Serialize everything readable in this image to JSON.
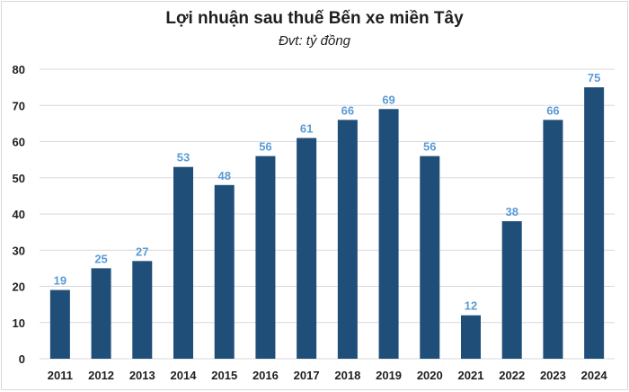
{
  "chart_data": {
    "type": "bar",
    "title": "Lợi nhuận sau thuế Bến xe miền Tây",
    "subtitle": "Đvt: tỷ đồng",
    "categories": [
      "2011",
      "2012",
      "2013",
      "2014",
      "2015",
      "2016",
      "2017",
      "2018",
      "2019",
      "2020",
      "2021",
      "2022",
      "2023",
      "2024"
    ],
    "series": [
      {
        "values": [
          19,
          25,
          27,
          53,
          48,
          56,
          61,
          66,
          69,
          56,
          12,
          38,
          66,
          75
        ]
      }
    ],
    "y_ticks": [
      "0",
      "10",
      "20",
      "30",
      "40",
      "50",
      "60",
      "70",
      "80"
    ],
    "ylim": [
      0,
      80
    ],
    "xlabel": "",
    "ylabel": "",
    "grid": true,
    "legend": "none",
    "data_labels": true,
    "colors": {
      "bar": "#1f4e79",
      "label": "#5b9bd5",
      "grid": "#d9d9d9",
      "axis_text": "#1f1f1f"
    }
  }
}
